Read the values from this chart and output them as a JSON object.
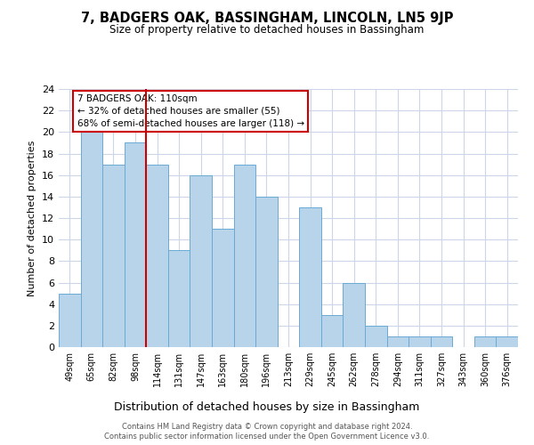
{
  "title": "7, BADGERS OAK, BASSINGHAM, LINCOLN, LN5 9JP",
  "subtitle": "Size of property relative to detached houses in Bassingham",
  "xlabel": "Distribution of detached houses by size in Bassingham",
  "ylabel": "Number of detached properties",
  "categories": [
    "49sqm",
    "65sqm",
    "82sqm",
    "98sqm",
    "114sqm",
    "131sqm",
    "147sqm",
    "163sqm",
    "180sqm",
    "196sqm",
    "213sqm",
    "229sqm",
    "245sqm",
    "262sqm",
    "278sqm",
    "294sqm",
    "311sqm",
    "327sqm",
    "343sqm",
    "360sqm",
    "376sqm"
  ],
  "values": [
    5,
    20,
    17,
    19,
    17,
    9,
    16,
    11,
    17,
    14,
    0,
    13,
    3,
    6,
    2,
    1,
    1,
    1,
    0,
    1,
    1
  ],
  "bar_color": "#b8d4ea",
  "bar_edge_color": "#6aaad4",
  "highlight_index": 4,
  "highlight_line_color": "#cc0000",
  "annotation_line1": "7 BADGERS OAK: 110sqm",
  "annotation_line2": "← 32% of detached houses are smaller (55)",
  "annotation_line3": "68% of semi-detached houses are larger (118) →",
  "annotation_box_edge_color": "#cc0000",
  "annotation_box_face_color": "#ffffff",
  "ylim": [
    0,
    24
  ],
  "yticks": [
    0,
    2,
    4,
    6,
    8,
    10,
    12,
    14,
    16,
    18,
    20,
    22,
    24
  ],
  "footer_line1": "Contains HM Land Registry data © Crown copyright and database right 2024.",
  "footer_line2": "Contains public sector information licensed under the Open Government Licence v3.0.",
  "background_color": "#ffffff",
  "grid_color": "#ccd6e8"
}
